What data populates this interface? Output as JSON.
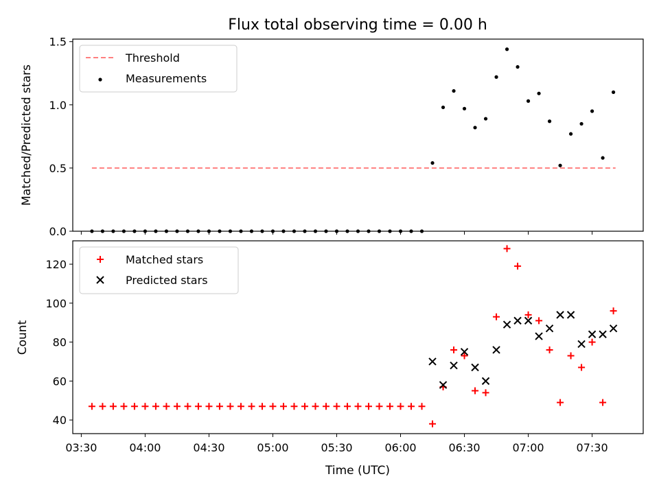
{
  "title": "Flux total observing time = 0.00 h",
  "chart_data": [
    {
      "type": "scatter",
      "ylabel": "Matched/Predicted stars",
      "ylim": [
        0,
        1.52
      ],
      "yticks": [
        0.0,
        0.5,
        1.0,
        1.5
      ],
      "ytick_labels": [
        "0.0",
        "0.5",
        "1.0",
        "1.5"
      ],
      "legend_position": "upper-left",
      "series": [
        {
          "name": "Threshold",
          "kind": "dashed-line",
          "color": "#ff7f7f",
          "x": [
            "03:35",
            "07:41"
          ],
          "y": [
            0.5,
            0.5
          ]
        },
        {
          "name": "Measurements",
          "kind": "dot",
          "color": "#000000",
          "x": [
            "03:35",
            "03:40",
            "03:45",
            "03:50",
            "03:55",
            "04:00",
            "04:05",
            "04:10",
            "04:15",
            "04:20",
            "04:25",
            "04:30",
            "04:35",
            "04:40",
            "04:45",
            "04:50",
            "04:55",
            "05:00",
            "05:05",
            "05:10",
            "05:15",
            "05:20",
            "05:25",
            "05:30",
            "05:35",
            "05:40",
            "05:45",
            "05:50",
            "05:55",
            "06:00",
            "06:05",
            "06:10",
            "06:15",
            "06:20",
            "06:25",
            "06:30",
            "06:35",
            "06:40",
            "06:45",
            "06:50",
            "06:55",
            "07:00",
            "07:05",
            "07:10",
            "07:15",
            "07:20",
            "07:25",
            "07:30",
            "07:35",
            "07:40"
          ],
          "y": [
            0,
            0,
            0,
            0,
            0,
            0,
            0,
            0,
            0,
            0,
            0,
            0,
            0,
            0,
            0,
            0,
            0,
            0,
            0,
            0,
            0,
            0,
            0,
            0,
            0,
            0,
            0,
            0,
            0,
            0,
            0,
            0,
            0.54,
            0.98,
            1.11,
            0.97,
            0.82,
            0.89,
            1.22,
            1.44,
            1.3,
            1.03,
            1.09,
            0.87,
            0.52,
            0.77,
            0.85,
            0.95,
            0.58,
            1.1
          ]
        }
      ]
    },
    {
      "type": "scatter",
      "xlabel": "Time (UTC)",
      "ylabel": "Count",
      "ylim": [
        33,
        132
      ],
      "yticks": [
        40,
        60,
        80,
        100,
        120
      ],
      "ytick_labels": [
        "40",
        "60",
        "80",
        "100",
        "120"
      ],
      "xlim": [
        "03:26",
        "07:54"
      ],
      "xticks": [
        "03:30",
        "04:00",
        "04:30",
        "05:00",
        "05:30",
        "06:00",
        "06:30",
        "07:00",
        "07:30"
      ],
      "legend_position": "upper-left",
      "series": [
        {
          "name": "Matched stars",
          "kind": "plus",
          "color": "#ff0000",
          "x": [
            "03:35",
            "03:40",
            "03:45",
            "03:50",
            "03:55",
            "04:00",
            "04:05",
            "04:10",
            "04:15",
            "04:20",
            "04:25",
            "04:30",
            "04:35",
            "04:40",
            "04:45",
            "04:50",
            "04:55",
            "05:00",
            "05:05",
            "05:10",
            "05:15",
            "05:20",
            "05:25",
            "05:30",
            "05:35",
            "05:40",
            "05:45",
            "05:50",
            "05:55",
            "06:00",
            "06:05",
            "06:10",
            "06:15",
            "06:20",
            "06:25",
            "06:30",
            "06:35",
            "06:40",
            "06:45",
            "06:50",
            "06:55",
            "07:00",
            "07:05",
            "07:10",
            "07:15",
            "07:20",
            "07:25",
            "07:30",
            "07:35",
            "07:40"
          ],
          "y": [
            47,
            47,
            47,
            47,
            47,
            47,
            47,
            47,
            47,
            47,
            47,
            47,
            47,
            47,
            47,
            47,
            47,
            47,
            47,
            47,
            47,
            47,
            47,
            47,
            47,
            47,
            47,
            47,
            47,
            47,
            47,
            47,
            38,
            57,
            76,
            73,
            55,
            54,
            93,
            128,
            119,
            94,
            91,
            76,
            49,
            73,
            67,
            80,
            49,
            96
          ]
        },
        {
          "name": "Predicted stars",
          "kind": "cross",
          "color": "#000000",
          "x": [
            "06:15",
            "06:20",
            "06:25",
            "06:30",
            "06:35",
            "06:40",
            "06:45",
            "06:50",
            "06:55",
            "07:00",
            "07:05",
            "07:10",
            "07:15",
            "07:20",
            "07:25",
            "07:30",
            "07:35",
            "07:40"
          ],
          "y": [
            70,
            58,
            68,
            75,
            67,
            60,
            76,
            89,
            91,
            91,
            83,
            87,
            94,
            94,
            79,
            84,
            84,
            87
          ]
        }
      ]
    }
  ]
}
